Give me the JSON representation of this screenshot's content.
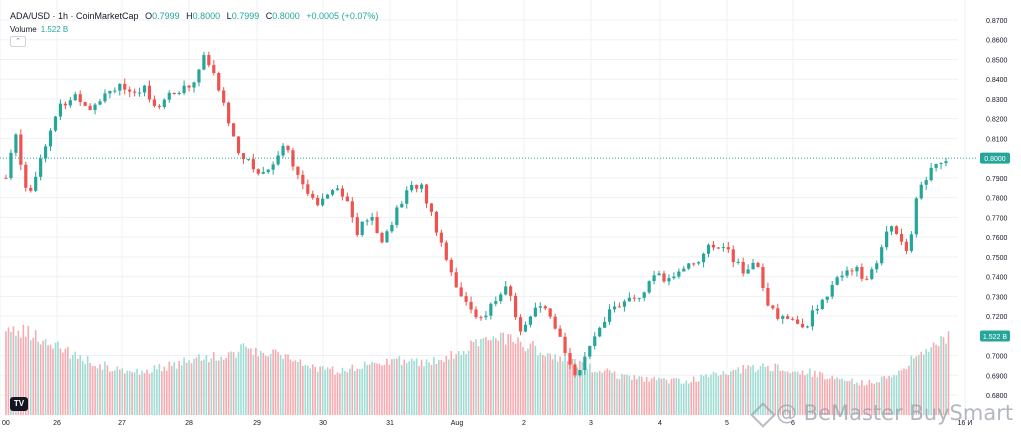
{
  "header": {
    "symbol": "ADA/USD · 1h · CoinMarketCap",
    "o_label": "O",
    "o_value": "0.7999",
    "h_label": "H",
    "h_value": "0.8000",
    "l_label": "L",
    "l_value": "0.7999",
    "c_label": "C",
    "c_value": "0.8000",
    "change": "+0.0005 (+0.07%)"
  },
  "volume_label": "Volume",
  "volume_value": "1.522 B",
  "volume_badge": "1.522 B",
  "price_badge": "0.8000",
  "watermark": "@ BeMaster BuySmart",
  "logo_text": "TV",
  "colors": {
    "up": "#26a69a",
    "down": "#ef5350",
    "vol_up": "#9fdcd3",
    "vol_down": "#f7aab0",
    "grid": "#eef0f3"
  },
  "chart_data": {
    "type": "candlestick",
    "title": "ADA/USD · 1h · CoinMarketCap",
    "x_ticks": [
      "00",
      "26",
      "27",
      "28",
      "29",
      "30",
      "31",
      "Aug",
      "2",
      "3",
      "4",
      "5",
      "6",
      "16 И"
    ],
    "y_ticks": [
      "0.8700",
      "0.8600",
      "0.8500",
      "0.8400",
      "0.8300",
      "0.8200",
      "0.8100",
      "0.7900",
      "0.7800",
      "0.7700",
      "0.7600",
      "0.7500",
      "0.7400",
      "0.7300",
      "0.7200",
      "0.7000",
      "0.6900",
      "0.6800"
    ],
    "ylim": [
      0.68,
      0.87
    ],
    "current_price": 0.8,
    "grid": true,
    "close_path": [
      [
        0,
        0.79
      ],
      [
        10,
        0.812
      ],
      [
        22,
        0.78
      ],
      [
        40,
        0.808
      ],
      [
        55,
        0.826
      ],
      [
        70,
        0.832
      ],
      [
        85,
        0.826
      ],
      [
        100,
        0.833
      ],
      [
        115,
        0.838
      ],
      [
        128,
        0.83
      ],
      [
        140,
        0.836
      ],
      [
        152,
        0.826
      ],
      [
        165,
        0.832
      ],
      [
        180,
        0.835
      ],
      [
        192,
        0.84
      ],
      [
        200,
        0.852
      ],
      [
        212,
        0.84
      ],
      [
        224,
        0.82
      ],
      [
        234,
        0.805
      ],
      [
        246,
        0.797
      ],
      [
        258,
        0.792
      ],
      [
        270,
        0.797
      ],
      [
        280,
        0.808
      ],
      [
        290,
        0.798
      ],
      [
        302,
        0.782
      ],
      [
        315,
        0.778
      ],
      [
        330,
        0.786
      ],
      [
        342,
        0.782
      ],
      [
        355,
        0.762
      ],
      [
        368,
        0.772
      ],
      [
        378,
        0.756
      ],
      [
        392,
        0.77
      ],
      [
        404,
        0.782
      ],
      [
        418,
        0.788
      ],
      [
        430,
        0.772
      ],
      [
        440,
        0.757
      ],
      [
        452,
        0.74
      ],
      [
        462,
        0.728
      ],
      [
        474,
        0.72
      ],
      [
        486,
        0.722
      ],
      [
        498,
        0.73
      ],
      [
        508,
        0.735
      ],
      [
        518,
        0.712
      ],
      [
        530,
        0.72
      ],
      [
        542,
        0.725
      ],
      [
        556,
        0.712
      ],
      [
        566,
        0.702
      ],
      [
        576,
        0.69
      ],
      [
        588,
        0.7
      ],
      [
        600,
        0.716
      ],
      [
        614,
        0.725
      ],
      [
        628,
        0.727
      ],
      [
        642,
        0.73
      ],
      [
        656,
        0.74
      ],
      [
        670,
        0.738
      ],
      [
        684,
        0.745
      ],
      [
        698,
        0.748
      ],
      [
        712,
        0.755
      ],
      [
        724,
        0.757
      ],
      [
        736,
        0.748
      ],
      [
        748,
        0.74
      ],
      [
        758,
        0.752
      ],
      [
        768,
        0.725
      ],
      [
        782,
        0.72
      ],
      [
        796,
        0.718
      ],
      [
        806,
        0.712
      ],
      [
        818,
        0.725
      ],
      [
        830,
        0.728
      ],
      [
        842,
        0.742
      ],
      [
        856,
        0.745
      ],
      [
        868,
        0.738
      ],
      [
        880,
        0.746
      ],
      [
        892,
        0.768
      ],
      [
        902,
        0.762
      ],
      [
        912,
        0.752
      ],
      [
        922,
        0.785
      ],
      [
        932,
        0.792
      ],
      [
        942,
        0.798
      ],
      [
        950,
        0.8
      ]
    ],
    "volume_profile": [
      [
        0,
        0.92
      ],
      [
        30,
        0.82
      ],
      [
        60,
        0.66
      ],
      [
        90,
        0.55
      ],
      [
        120,
        0.44
      ],
      [
        150,
        0.48
      ],
      [
        180,
        0.55
      ],
      [
        210,
        0.61
      ],
      [
        240,
        0.68
      ],
      [
        270,
        0.66
      ],
      [
        300,
        0.54
      ],
      [
        330,
        0.46
      ],
      [
        360,
        0.5
      ],
      [
        390,
        0.58
      ],
      [
        420,
        0.53
      ],
      [
        450,
        0.62
      ],
      [
        480,
        0.76
      ],
      [
        510,
        0.8
      ],
      [
        540,
        0.67
      ],
      [
        570,
        0.56
      ],
      [
        600,
        0.46
      ],
      [
        630,
        0.39
      ],
      [
        660,
        0.36
      ],
      [
        690,
        0.35
      ],
      [
        720,
        0.45
      ],
      [
        750,
        0.49
      ],
      [
        780,
        0.5
      ],
      [
        810,
        0.45
      ],
      [
        840,
        0.38
      ],
      [
        870,
        0.33
      ],
      [
        900,
        0.42
      ],
      [
        925,
        0.66
      ],
      [
        950,
        0.82
      ]
    ]
  }
}
